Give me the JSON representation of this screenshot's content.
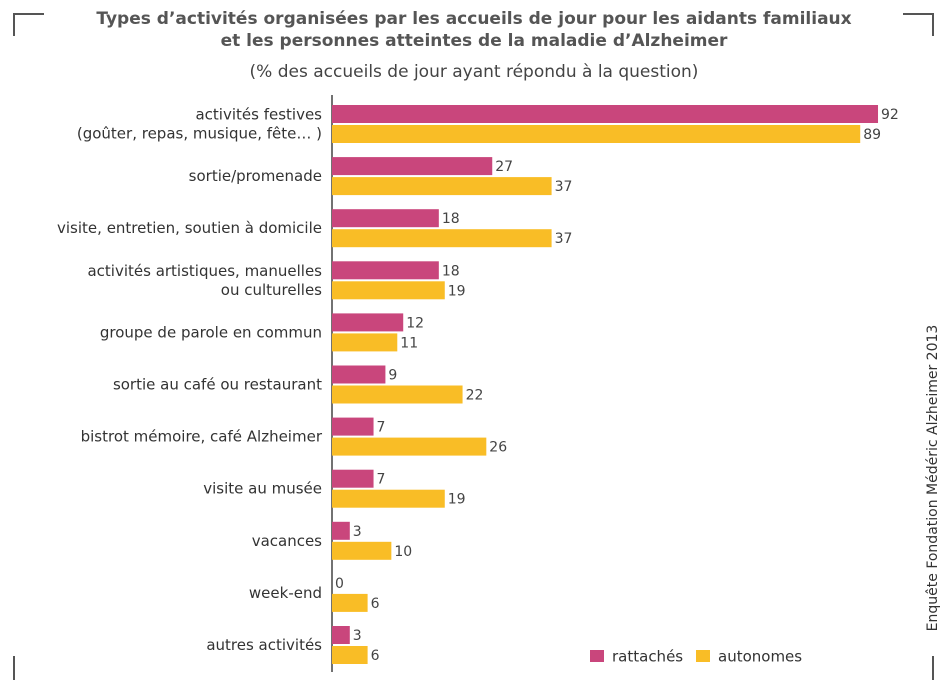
{
  "chart_data": {
    "type": "hbar",
    "title": "Types d’activités organisées par les accueils de jour pour les aidants familiaux\net les personnes atteintes de la maladie d’Alzheimer",
    "subtitle": "(% des accueils de jour ayant répondu à la question)",
    "source": "Enquête Fondation Médéric Alzheimer 2013",
    "categories": [
      "activités festives\n(goûter, repas, musique, fête… )",
      "sortie/promenade",
      "visite, entretien, soutien à domicile",
      "activités artistiques, manuelles\nou culturelles",
      "groupe de parole en commun",
      "sortie au café ou restaurant",
      "bistrot mémoire, café Alzheimer",
      "visite au musée",
      "vacances",
      "week-end",
      "autres activités"
    ],
    "series": [
      {
        "name": "rattachés",
        "color": "#c9467c",
        "values": [
          92,
          27,
          18,
          18,
          12,
          9,
          7,
          7,
          3,
          0,
          3
        ]
      },
      {
        "name": "autonomes",
        "color": "#f9bd26",
        "values": [
          89,
          37,
          37,
          19,
          11,
          22,
          26,
          19,
          10,
          6,
          6
        ]
      }
    ],
    "legend": "bottom-right"
  }
}
